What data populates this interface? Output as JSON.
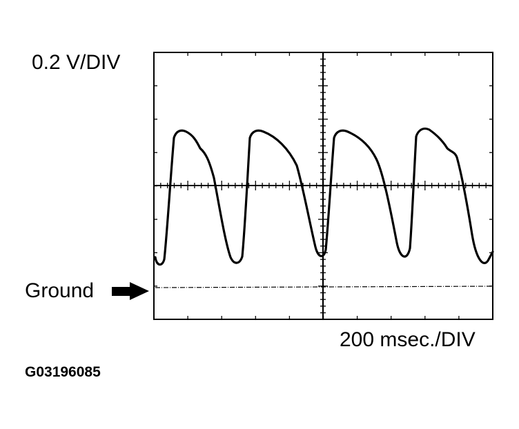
{
  "labels": {
    "volts_per_div": "0.2 V/DIV",
    "ground": "Ground",
    "time_per_div": "200 msec./DIV",
    "figure_code": "G03196085"
  },
  "scope": {
    "volts_per_div": 0.2,
    "msec_per_div": 200,
    "horizontal_divisions": 5,
    "vertical_divisions": 4,
    "reference_level_div_above_ground": 1.5,
    "trace_color": "#000000",
    "ground_marker": "right-arrow-icon"
  }
}
